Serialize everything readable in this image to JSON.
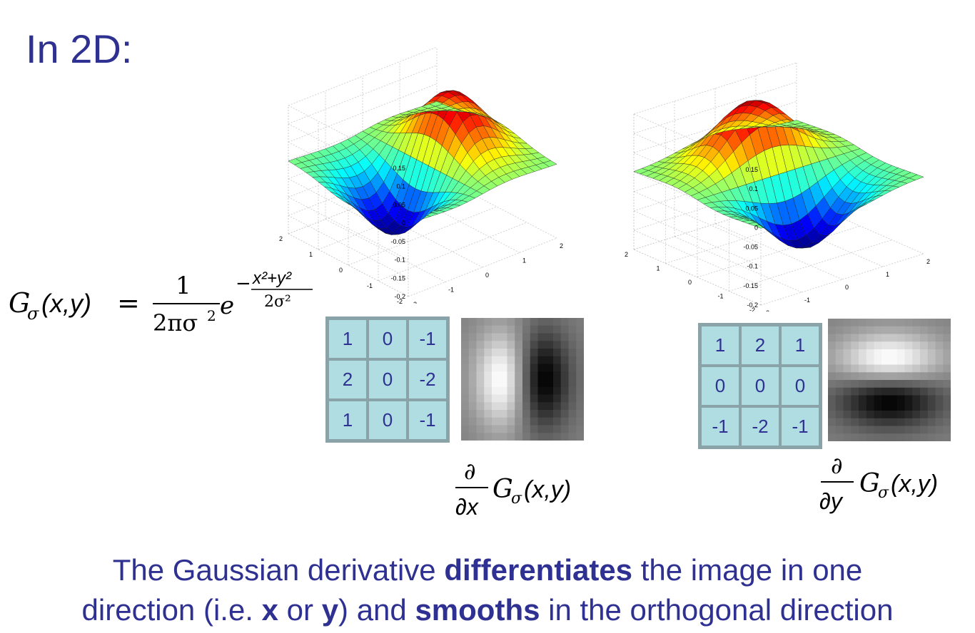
{
  "title": "In 2D:",
  "formula": {
    "lhs": "G",
    "sub": "σ",
    "args": "(x,y)",
    "eq": "=",
    "num": "1",
    "den": "2πσ",
    "den_exp": "2",
    "base": "e",
    "exp_minus": "−",
    "exp_num": "x²+y²",
    "exp_den": "2σ²"
  },
  "chart_data": [
    {
      "type": "surface",
      "zticks": [
        "0.15",
        "0.1",
        "0.05",
        "0",
        "-0.05",
        "-0.1",
        "-0.15",
        "-0.2"
      ],
      "yticks": [
        "2",
        "1",
        "0",
        "-1",
        "-2"
      ],
      "xticks": [
        "-2",
        "-1",
        "0",
        "1",
        "2"
      ],
      "zlim": [
        -0.2,
        0.15
      ]
    },
    {
      "type": "surface",
      "zticks": [
        "0.15",
        "0.1",
        "0.05",
        "0",
        "-0.05",
        "-0.1",
        "-0.15",
        "-0.2"
      ],
      "yticks": [
        "2",
        "1",
        "0",
        "-1",
        "-2"
      ],
      "xticks": [
        "-2",
        "-1",
        "0",
        "1",
        "2"
      ],
      "zlim": [
        -0.2,
        0.15
      ]
    }
  ],
  "kernel_x": [
    [
      "1",
      "0",
      "-1"
    ],
    [
      "2",
      "0",
      "-2"
    ],
    [
      "1",
      "0",
      "-1"
    ]
  ],
  "kernel_y": [
    [
      "1",
      "2",
      "1"
    ],
    [
      "0",
      "0",
      "0"
    ],
    [
      "-1",
      "-2",
      "-1"
    ]
  ],
  "deriv_x": {
    "partial": "∂",
    "var": "∂x",
    "func": "G",
    "sub": "σ",
    "args": "(x,y)"
  },
  "deriv_y": {
    "partial": "∂",
    "var": "∂y",
    "func": "G",
    "sub": "σ",
    "args": "(x,y)"
  },
  "caption": {
    "p1": "The Gaussian derivative ",
    "b1": "differentiates",
    "p2": " the image in one",
    "p3": "direction (i.e. ",
    "b2": "x",
    "p4": " or ",
    "b3": "y",
    "p5": ") and ",
    "b4": "smooths",
    "p6": " in the orthogonal direction"
  }
}
